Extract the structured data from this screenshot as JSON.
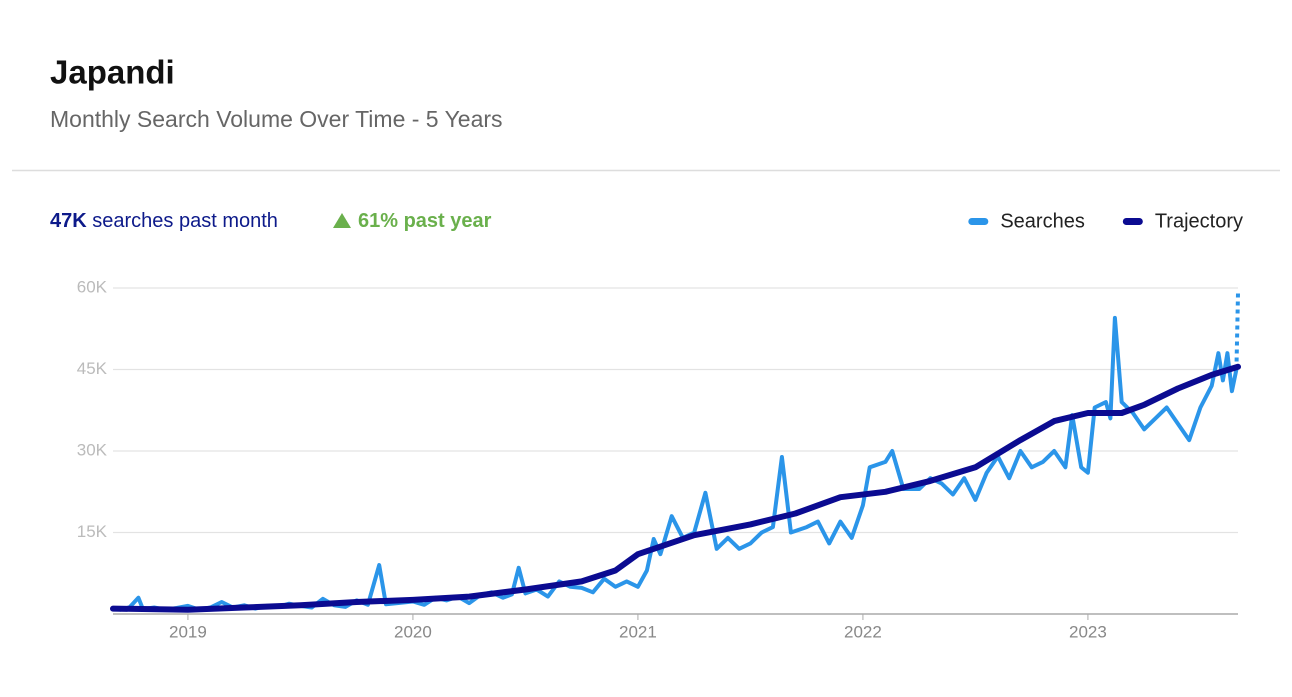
{
  "chart_data": {
    "type": "line",
    "title": "Japandi",
    "subtitle": "Monthly Search  Volume Over  Time -  5 Years",
    "stats": {
      "value": "47K",
      "label": "searches past month"
    },
    "growth": {
      "value": "61%",
      "label": "past year"
    },
    "xlim": [
      2018.667,
      2023.667
    ],
    "xticks": [
      2019,
      2020,
      2021,
      2022,
      2023
    ],
    "ylim": [
      0,
      60000
    ],
    "yticks": [
      {
        "value": 15000,
        "label": "15K"
      },
      {
        "value": 30000,
        "label": "30K"
      },
      {
        "value": 45000,
        "label": "45K"
      },
      {
        "value": 60000,
        "label": "60K"
      }
    ],
    "grid": true,
    "legend": "top-right",
    "series": [
      {
        "name": "Searches",
        "color": "#2b95e9",
        "width": 4,
        "x": [
          2018.667,
          2018.7,
          2018.74,
          2018.78,
          2018.8,
          2018.85,
          2018.9,
          2018.95,
          2019.0,
          2019.05,
          2019.1,
          2019.15,
          2019.2,
          2019.25,
          2019.3,
          2019.35,
          2019.4,
          2019.45,
          2019.5,
          2019.55,
          2019.6,
          2019.65,
          2019.7,
          2019.75,
          2019.8,
          2019.85,
          2019.88,
          2019.93,
          2020.0,
          2020.05,
          2020.1,
          2020.15,
          2020.2,
          2020.25,
          2020.3,
          2020.35,
          2020.4,
          2020.44,
          2020.47,
          2020.5,
          2020.55,
          2020.6,
          2020.65,
          2020.7,
          2020.75,
          2020.8,
          2020.85,
          2020.9,
          2020.95,
          2021.0,
          2021.04,
          2021.07,
          2021.1,
          2021.15,
          2021.2,
          2021.25,
          2021.3,
          2021.35,
          2021.4,
          2021.45,
          2021.5,
          2021.55,
          2021.6,
          2021.64,
          2021.68,
          2021.75,
          2021.8,
          2021.85,
          2021.9,
          2021.95,
          2022.0,
          2022.03,
          2022.1,
          2022.13,
          2022.18,
          2022.25,
          2022.3,
          2022.35,
          2022.4,
          2022.45,
          2022.5,
          2022.55,
          2022.6,
          2022.65,
          2022.7,
          2022.75,
          2022.8,
          2022.85,
          2022.9,
          2022.93,
          2022.97,
          2023.0,
          2023.03,
          2023.08,
          2023.1,
          2023.12,
          2023.15,
          2023.2,
          2023.25,
          2023.3,
          2023.35,
          2023.4,
          2023.45,
          2023.5,
          2023.55,
          2023.58,
          2023.6,
          2023.62,
          2023.64,
          2023.66
        ],
        "values": [
          1000,
          800,
          1200,
          3000,
          900,
          1200,
          800,
          1100,
          1500,
          800,
          1200,
          2200,
          1200,
          1600,
          1000,
          1500,
          1300,
          1900,
          1500,
          1200,
          2800,
          1600,
          1300,
          2500,
          1700,
          9000,
          1800,
          2000,
          2300,
          1700,
          3000,
          2500,
          3200,
          2000,
          3500,
          4000,
          3000,
          3600,
          8500,
          3800,
          4500,
          3200,
          6000,
          5000,
          4800,
          4000,
          6500,
          5000,
          6000,
          5000,
          8000,
          13800,
          11000,
          18000,
          14000,
          15000,
          22300,
          12000,
          14000,
          12000,
          13000,
          15000,
          16000,
          28900,
          15000,
          16000,
          17000,
          13000,
          17000,
          14000,
          20000,
          27000,
          28000,
          30000,
          23000,
          23000,
          25000,
          24000,
          22000,
          25000,
          21000,
          26000,
          29000,
          25000,
          30000,
          27000,
          28000,
          30000,
          27000,
          36600,
          27000,
          26000,
          38000,
          39000,
          36000,
          54500,
          39000,
          37000,
          34000,
          36000,
          38000,
          35000,
          32000,
          38000,
          42000,
          48000,
          43000,
          48000,
          41000,
          45000
        ],
        "projected": {
          "x": 2023.667,
          "value": 59000
        }
      },
      {
        "name": "Trajectory",
        "color": "#0b0b91",
        "width": 6,
        "x": [
          2018.667,
          2019.0,
          2019.25,
          2019.5,
          2019.75,
          2020.0,
          2020.25,
          2020.5,
          2020.75,
          2020.9,
          2021.0,
          2021.25,
          2021.5,
          2021.7,
          2021.9,
          2022.1,
          2022.3,
          2022.5,
          2022.7,
          2022.85,
          2023.0,
          2023.15,
          2023.25,
          2023.4,
          2023.55,
          2023.667
        ],
        "values": [
          1000,
          800,
          1200,
          1600,
          2200,
          2600,
          3200,
          4500,
          6000,
          8000,
          11000,
          14500,
          16500,
          18500,
          21500,
          22500,
          24500,
          27000,
          32000,
          35500,
          37000,
          37000,
          38500,
          41500,
          44000,
          45500
        ]
      }
    ]
  }
}
